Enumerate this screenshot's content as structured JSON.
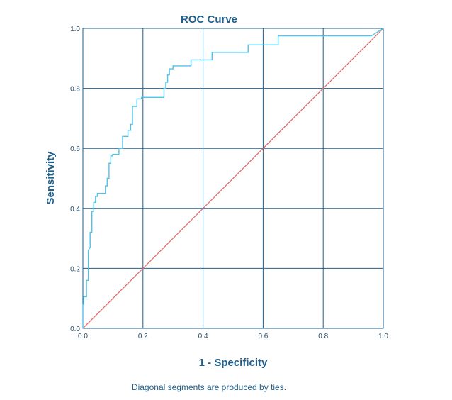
{
  "chart_data": {
    "type": "line",
    "title": "ROC Curve",
    "xlabel": "1 - Specificity",
    "ylabel": "Sensitivity",
    "xlim": [
      0,
      1
    ],
    "ylim": [
      0,
      1
    ],
    "x_ticks": [
      "0.0",
      "0.2",
      "0.4",
      "0.6",
      "0.8",
      "1.0"
    ],
    "y_ticks": [
      "0.0",
      "0.2",
      "0.4",
      "0.6",
      "0.8",
      "1.0"
    ],
    "grid": true,
    "footnote": "Diagonal segments are produced by ties.",
    "colors": {
      "roc": "#4fc3e8",
      "reference": "#e06666",
      "grid": "#1f5f8b",
      "text": "#1f5f8b"
    },
    "series": [
      {
        "x": [
          0.0,
          0.0,
          0.003,
          0.003,
          0.012,
          0.012,
          0.018,
          0.018,
          0.021,
          0.024,
          0.024,
          0.03,
          0.03,
          0.036,
          0.036,
          0.042,
          0.042,
          0.048,
          0.048,
          0.075,
          0.075,
          0.081,
          0.081,
          0.087,
          0.087,
          0.093,
          0.093,
          0.099,
          0.099,
          0.12,
          0.12,
          0.132,
          0.132,
          0.15,
          0.15,
          0.159,
          0.159,
          0.165,
          0.165,
          0.18,
          0.18,
          0.195,
          0.195,
          0.27,
          0.27,
          0.276,
          0.276,
          0.282,
          0.282,
          0.288,
          0.288,
          0.3,
          0.3,
          0.3,
          0.3,
          0.36,
          0.36,
          0.43,
          0.43,
          0.55,
          0.55,
          0.65,
          0.65,
          0.96,
          1.0
        ],
        "y": [
          0.0,
          0.08,
          0.08,
          0.105,
          0.105,
          0.16,
          0.16,
          0.26,
          0.265,
          0.27,
          0.32,
          0.32,
          0.39,
          0.39,
          0.42,
          0.42,
          0.44,
          0.44,
          0.45,
          0.45,
          0.475,
          0.475,
          0.5,
          0.5,
          0.55,
          0.55,
          0.575,
          0.575,
          0.58,
          0.58,
          0.6,
          0.6,
          0.64,
          0.64,
          0.66,
          0.66,
          0.68,
          0.68,
          0.74,
          0.74,
          0.765,
          0.765,
          0.77,
          0.77,
          0.8,
          0.8,
          0.82,
          0.82,
          0.845,
          0.845,
          0.865,
          0.865,
          0.87,
          0.87,
          0.875,
          0.875,
          0.895,
          0.895,
          0.92,
          0.92,
          0.945,
          0.945,
          0.975,
          0.975,
          1.0
        ]
      },
      {
        "x": [
          0,
          1
        ],
        "y": [
          0,
          1
        ]
      }
    ]
  }
}
